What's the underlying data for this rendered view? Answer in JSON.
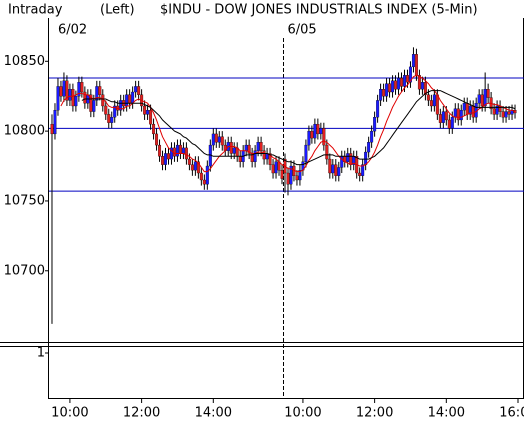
{
  "chart_data": {
    "type": "candlestick",
    "header": [
      "Intraday",
      "(Left)",
      "$INDU - DOW JONES INDUSTRIALS INDEX (5-Min)"
    ],
    "ylim": [
      10649,
      10881
    ],
    "yticks": [
      10700,
      10750,
      10800,
      10850
    ],
    "xlim": [
      -1,
      157
    ],
    "xticks": [
      {
        "value": 6,
        "label": "10:00"
      },
      {
        "value": 30,
        "label": "12:00"
      },
      {
        "value": 54,
        "label": "14:00"
      },
      {
        "value": 84,
        "label": "10:00"
      },
      {
        "value": 108,
        "label": "12:00"
      },
      {
        "value": 132,
        "label": "14:00"
      },
      {
        "value": 156,
        "label": "16:00"
      }
    ],
    "day_starts": [
      {
        "value": 0,
        "label": "6/02"
      },
      {
        "value": 78,
        "label": "6/05"
      }
    ],
    "hlines": [
      10838,
      10802,
      10757
    ],
    "hline_color": "#0000c0",
    "up_color": "#1a1aff",
    "down_color": "#e02020",
    "lower_ylim": [
      0,
      1
    ],
    "lower_yticks": [
      1
    ],
    "ohlc": [
      [
        10805,
        10812,
        10662,
        10798
      ],
      [
        10798,
        10820,
        10794,
        10815
      ],
      [
        10815,
        10838,
        10811,
        10832
      ],
      [
        10832,
        10836,
        10821,
        10825
      ],
      [
        10825,
        10842,
        10821,
        10836
      ],
      [
        10836,
        10840,
        10818,
        10822
      ],
      [
        10822,
        10834,
        10818,
        10830
      ],
      [
        10830,
        10834,
        10814,
        10818
      ],
      [
        10818,
        10829,
        10814,
        10825
      ],
      [
        10825,
        10839,
        10821,
        10835
      ],
      [
        10835,
        10839,
        10824,
        10828
      ],
      [
        10828,
        10832,
        10816,
        10820
      ],
      [
        10820,
        10830,
        10816,
        10826
      ],
      [
        10826,
        10830,
        10810,
        10814
      ],
      [
        10814,
        10826,
        10810,
        10822
      ],
      [
        10822,
        10836,
        10818,
        10832
      ],
      [
        10832,
        10836,
        10822,
        10826
      ],
      [
        10826,
        10830,
        10814,
        10818
      ],
      [
        10818,
        10822,
        10808,
        10812
      ],
      [
        10812,
        10816,
        10802,
        10806
      ],
      [
        10806,
        10814,
        10802,
        10810
      ],
      [
        10810,
        10822,
        10806,
        10818
      ],
      [
        10818,
        10822,
        10811,
        10815
      ],
      [
        10815,
        10826,
        10811,
        10822
      ],
      [
        10822,
        10826,
        10814,
        10818
      ],
      [
        10818,
        10830,
        10814,
        10826
      ],
      [
        10826,
        10830,
        10816,
        10820
      ],
      [
        10820,
        10832,
        10816,
        10828
      ],
      [
        10828,
        10836,
        10824,
        10832
      ],
      [
        10832,
        10836,
        10822,
        10826
      ],
      [
        10826,
        10830,
        10814,
        10818
      ],
      [
        10818,
        10822,
        10808,
        10812
      ],
      [
        10812,
        10819,
        10808,
        10815
      ],
      [
        10815,
        10819,
        10801,
        10805
      ],
      [
        10805,
        10809,
        10794,
        10798
      ],
      [
        10798,
        10802,
        10786,
        10790
      ],
      [
        10790,
        10794,
        10778,
        10782
      ],
      [
        10782,
        10786,
        10772,
        10776
      ],
      [
        10776,
        10788,
        10772,
        10784
      ],
      [
        10784,
        10788,
        10776,
        10780
      ],
      [
        10780,
        10792,
        10776,
        10788
      ],
      [
        10788,
        10792,
        10778,
        10782
      ],
      [
        10782,
        10794,
        10778,
        10790
      ],
      [
        10790,
        10794,
        10780,
        10784
      ],
      [
        10784,
        10792,
        10780,
        10788
      ],
      [
        10788,
        10792,
        10776,
        10780
      ],
      [
        10780,
        10784,
        10772,
        10776
      ],
      [
        10776,
        10780,
        10768,
        10772
      ],
      [
        10772,
        10782,
        10768,
        10778
      ],
      [
        10778,
        10782,
        10766,
        10770
      ],
      [
        10770,
        10774,
        10761,
        10765
      ],
      [
        10765,
        10769,
        10758,
        10762
      ],
      [
        10762,
        10779,
        10758,
        10775
      ],
      [
        10775,
        10794,
        10771,
        10790
      ],
      [
        10790,
        10802,
        10786,
        10798
      ],
      [
        10798,
        10802,
        10788,
        10792
      ],
      [
        10792,
        10800,
        10788,
        10796
      ],
      [
        10796,
        10800,
        10786,
        10790
      ],
      [
        10790,
        10794,
        10782,
        10786
      ],
      [
        10786,
        10796,
        10782,
        10792
      ],
      [
        10792,
        10796,
        10780,
        10784
      ],
      [
        10784,
        10792,
        10780,
        10788
      ],
      [
        10788,
        10792,
        10778,
        10782
      ],
      [
        10782,
        10786,
        10774,
        10778
      ],
      [
        10778,
        10790,
        10774,
        10786
      ],
      [
        10786,
        10794,
        10782,
        10790
      ],
      [
        10790,
        10794,
        10780,
        10784
      ],
      [
        10784,
        10788,
        10774,
        10778
      ],
      [
        10778,
        10790,
        10774,
        10786
      ],
      [
        10786,
        10796,
        10782,
        10792
      ],
      [
        10792,
        10796,
        10782,
        10786
      ],
      [
        10786,
        10790,
        10776,
        10780
      ],
      [
        10780,
        10788,
        10776,
        10784
      ],
      [
        10784,
        10788,
        10772,
        10776
      ],
      [
        10776,
        10780,
        10766,
        10770
      ],
      [
        10770,
        10782,
        10766,
        10778
      ],
      [
        10778,
        10782,
        10768,
        10772
      ],
      [
        10772,
        10776,
        10762,
        10766
      ],
      [
        10780,
        10784,
        10756,
        10770
      ],
      [
        10770,
        10774,
        10754,
        10762
      ],
      [
        10762,
        10779,
        10758,
        10775
      ],
      [
        10775,
        10779,
        10764,
        10768
      ],
      [
        10768,
        10772,
        10761,
        10765
      ],
      [
        10765,
        10776,
        10761,
        10772
      ],
      [
        10772,
        10782,
        10768,
        10778
      ],
      [
        10778,
        10794,
        10774,
        10790
      ],
      [
        10790,
        10804,
        10786,
        10800
      ],
      [
        10800,
        10804,
        10791,
        10795
      ],
      [
        10795,
        10809,
        10791,
        10805
      ],
      [
        10805,
        10809,
        10794,
        10798
      ],
      [
        10798,
        10806,
        10794,
        10802
      ],
      [
        10802,
        10806,
        10786,
        10790
      ],
      [
        10790,
        10794,
        10776,
        10780
      ],
      [
        10780,
        10784,
        10766,
        10770
      ],
      [
        10770,
        10780,
        10766,
        10776
      ],
      [
        10776,
        10780,
        10764,
        10768
      ],
      [
        10768,
        10778,
        10764,
        10774
      ],
      [
        10774,
        10786,
        10770,
        10782
      ],
      [
        10782,
        10786,
        10774,
        10778
      ],
      [
        10778,
        10788,
        10774,
        10784
      ],
      [
        10784,
        10788,
        10772,
        10776
      ],
      [
        10776,
        10786,
        10772,
        10782
      ],
      [
        10782,
        10786,
        10766,
        10770
      ],
      [
        10770,
        10774,
        10764,
        10768
      ],
      [
        10768,
        10780,
        10764,
        10776
      ],
      [
        10776,
        10789,
        10772,
        10785
      ],
      [
        10785,
        10796,
        10781,
        10792
      ],
      [
        10792,
        10804,
        10788,
        10800
      ],
      [
        10800,
        10814,
        10796,
        10810
      ],
      [
        10810,
        10826,
        10806,
        10822
      ],
      [
        10822,
        10834,
        10818,
        10830
      ],
      [
        10830,
        10834,
        10821,
        10825
      ],
      [
        10825,
        10838,
        10821,
        10834
      ],
      [
        10834,
        10838,
        10824,
        10828
      ],
      [
        10828,
        10840,
        10824,
        10836
      ],
      [
        10836,
        10840,
        10826,
        10830
      ],
      [
        10830,
        10842,
        10826,
        10838
      ],
      [
        10838,
        10842,
        10828,
        10832
      ],
      [
        10832,
        10844,
        10828,
        10840
      ],
      [
        10840,
        10844,
        10831,
        10835
      ],
      [
        10835,
        10850,
        10831,
        10846
      ],
      [
        10846,
        10860,
        10842,
        10855
      ],
      [
        10855,
        10859,
        10836,
        10840
      ],
      [
        10840,
        10844,
        10826,
        10830
      ],
      [
        10830,
        10839,
        10826,
        10835
      ],
      [
        10835,
        10839,
        10822,
        10826
      ],
      [
        10826,
        10830,
        10818,
        10822
      ],
      [
        10822,
        10826,
        10814,
        10818
      ],
      [
        10818,
        10830,
        10814,
        10826
      ],
      [
        10826,
        10830,
        10808,
        10812
      ],
      [
        10812,
        10816,
        10802,
        10806
      ],
      [
        10806,
        10818,
        10802,
        10814
      ],
      [
        10814,
        10818,
        10804,
        10808
      ],
      [
        10808,
        10812,
        10798,
        10802
      ],
      [
        10802,
        10814,
        10798,
        10810
      ],
      [
        10810,
        10820,
        10806,
        10816
      ],
      [
        10816,
        10820,
        10804,
        10808
      ],
      [
        10808,
        10819,
        10804,
        10815
      ],
      [
        10815,
        10824,
        10811,
        10820
      ],
      [
        10820,
        10824,
        10808,
        10812
      ],
      [
        10812,
        10822,
        10808,
        10818
      ],
      [
        10818,
        10822,
        10806,
        10810
      ],
      [
        10810,
        10824,
        10806,
        10820
      ],
      [
        10820,
        10830,
        10816,
        10826
      ],
      [
        10826,
        10830,
        10814,
        10818
      ],
      [
        10818,
        10842,
        10814,
        10830
      ],
      [
        10830,
        10834,
        10820,
        10824
      ],
      [
        10824,
        10828,
        10812,
        10816
      ],
      [
        10816,
        10820,
        10808,
        10812
      ],
      [
        10812,
        10822,
        10808,
        10818
      ],
      [
        10818,
        10822,
        10810,
        10814
      ],
      [
        10814,
        10818,
        10806,
        10810
      ],
      [
        10810,
        10818,
        10806,
        10814
      ],
      [
        10814,
        10818,
        10808,
        10812
      ],
      [
        10812,
        10819,
        10808,
        10815
      ],
      [
        10815,
        10819,
        10809,
        10813
      ]
    ],
    "series": [
      {
        "color": "#e00000",
        "values": [
          null,
          null,
          null,
          10818,
          10822,
          10824,
          10825,
          10825,
          10826,
          10827,
          10827,
          10826,
          10826,
          10824,
          10823,
          10824,
          10824,
          10823,
          10821,
          10818,
          10817,
          10817,
          10816,
          10816,
          10816,
          10818,
          10818,
          10820,
          10822,
          10823,
          10822,
          10821,
          10820,
          10817,
          10813,
          10808,
          10802,
          10796,
          10792,
          10788,
          10786,
          10784,
          10784,
          10784,
          10784,
          10783,
          10782,
          10780,
          10779,
          10777,
          10774,
          10771,
          10771,
          10773,
          10776,
          10779,
          10782,
          10784,
          10786,
          10789,
          10789,
          10789,
          10788,
          10786,
          10786,
          10786,
          10785,
          10784,
          10784,
          10785,
          10785,
          10784,
          10784,
          10783,
          10781,
          10780,
          10778,
          10776,
          10775,
          10773,
          10773,
          10772,
          10771,
          10771,
          10772,
          10775,
          10779,
          10782,
          10786,
          10789,
          10792,
          10793,
          10792,
          10790,
          10788,
          10785,
          10782,
          10780,
          10778,
          10777,
          10776,
          10777,
          10776,
          10775,
          10775,
          10776,
          10778,
          10781,
          10785,
          10790,
          10796,
          10801,
          10807,
          10812,
          10817,
          10821,
          10825,
          10828,
          10831,
          10833,
          10836,
          10839,
          10840,
          10839,
          10838,
          10836,
          10834,
          10831,
          10829,
          10826,
          10822,
          10819,
          10816,
          10813,
          10811,
          10810,
          10810,
          10810,
          10811,
          10812,
          10813,
          10813,
          10814,
          10816,
          10817,
          10819,
          10820,
          10820,
          10819,
          10819,
          10818,
          10817,
          10816,
          10815,
          10815,
          10814
        ]
      },
      {
        "color": "#000000",
        "values": [
          null,
          null,
          null,
          null,
          null,
          null,
          null,
          null,
          null,
          null,
          10822,
          10823,
          10823,
          10823,
          10823,
          10823,
          10823,
          10823,
          10823,
          10822,
          10821,
          10821,
          10820,
          10820,
          10820,
          10820,
          10820,
          10820,
          10820,
          10820,
          10820,
          10819,
          10818,
          10817,
          10815,
          10813,
          10811,
          10808,
          10806,
          10804,
          10802,
          10800,
          10799,
          10798,
          10796,
          10795,
          10793,
          10791,
          10790,
          10788,
          10786,
          10784,
          10783,
          10783,
          10782,
          10782,
          10782,
          10782,
          10782,
          10782,
          10782,
          10782,
          10782,
          10782,
          10782,
          10783,
          10783,
          10783,
          10784,
          10784,
          10784,
          10784,
          10784,
          10783,
          10783,
          10782,
          10781,
          10780,
          10779,
          10778,
          10778,
          10777,
          10776,
          10776,
          10776,
          10777,
          10778,
          10779,
          10780,
          10781,
          10782,
          10783,
          10783,
          10783,
          10783,
          10782,
          10782,
          10782,
          10782,
          10782,
          10782,
          10782,
          10781,
          10780,
          10780,
          10780,
          10780,
          10781,
          10782,
          10784,
          10786,
          10788,
          10791,
          10794,
          10797,
          10800,
          10803,
          10806,
          10809,
          10812,
          10815,
          10818,
          10821,
          10823,
          10825,
          10827,
          10828,
          10829,
          10829,
          10829,
          10829,
          10828,
          10827,
          10826,
          10825,
          10824,
          10823,
          10822,
          10821,
          10820,
          10819,
          10818,
          10817,
          10817,
          10817,
          10817,
          10817,
          10817,
          10817,
          10817,
          10817,
          10817,
          10817,
          10817,
          10817,
          10816
        ]
      }
    ]
  }
}
